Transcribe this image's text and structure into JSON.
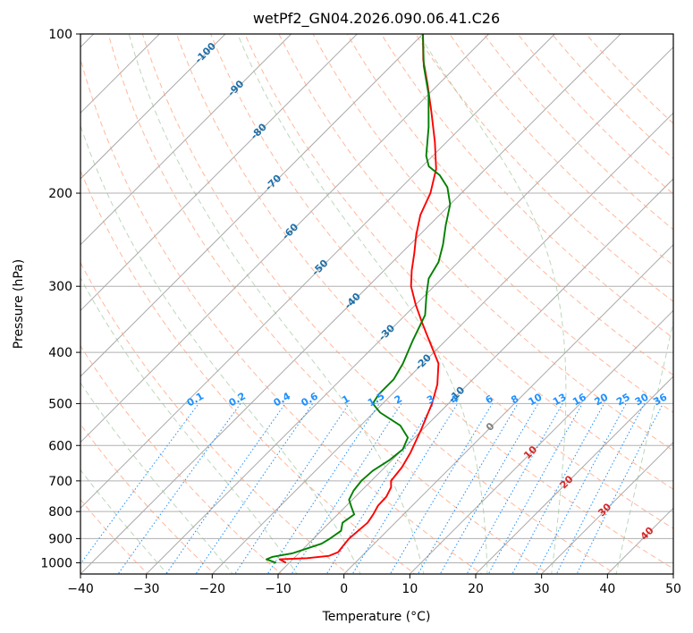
{
  "chart_data": {
    "type": "line",
    "subtype": "skew-t log-p diagram",
    "title": "wetPf2_GN04.2026.090.06.41.C26",
    "xlabel": "Temperature (°C)",
    "ylabel": "Pressure (hPa)",
    "xlim": [
      -40,
      50
    ],
    "ylim": [
      1050,
      100
    ],
    "x_ticks": [
      -40,
      -30,
      -20,
      -10,
      0,
      10,
      20,
      30,
      40,
      50
    ],
    "y_ticks": [
      1000,
      900,
      800,
      700,
      600,
      500,
      400,
      300,
      200,
      100
    ],
    "grid": true,
    "series": [
      {
        "name": "temperature",
        "color": "#ff0000",
        "points": [
          {
            "p": 1000,
            "t": -10.5
          },
          {
            "p": 990,
            "t": -11.5
          },
          {
            "p": 985,
            "t": -12.0
          },
          {
            "p": 980,
            "t": -8.0
          },
          {
            "p": 970,
            "t": -5.0
          },
          {
            "p": 955,
            "t": -4.2
          },
          {
            "p": 930,
            "t": -4.4
          },
          {
            "p": 900,
            "t": -4.6
          },
          {
            "p": 870,
            "t": -4.4
          },
          {
            "p": 840,
            "t": -4.2
          },
          {
            "p": 810,
            "t": -4.6
          },
          {
            "p": 780,
            "t": -5.2
          },
          {
            "p": 750,
            "t": -5.3
          },
          {
            "p": 720,
            "t": -6.0
          },
          {
            "p": 700,
            "t": -7.0
          },
          {
            "p": 660,
            "t": -7.4
          },
          {
            "p": 620,
            "t": -8.3
          },
          {
            "p": 560,
            "t": -10.2
          },
          {
            "p": 500,
            "t": -12.5
          },
          {
            "p": 460,
            "t": -14.6
          },
          {
            "p": 420,
            "t": -17.6
          },
          {
            "p": 380,
            "t": -22.5
          },
          {
            "p": 350,
            "t": -26.5
          },
          {
            "p": 325,
            "t": -30.0
          },
          {
            "p": 300,
            "t": -33.5
          },
          {
            "p": 280,
            "t": -35.8
          },
          {
            "p": 260,
            "t": -38.0
          },
          {
            "p": 240,
            "t": -40.5
          },
          {
            "p": 220,
            "t": -42.9
          },
          {
            "p": 200,
            "t": -44.7
          },
          {
            "p": 180,
            "t": -47.5
          },
          {
            "p": 160,
            "t": -51.8
          },
          {
            "p": 140,
            "t": -57.0
          },
          {
            "p": 125,
            "t": -61.5
          },
          {
            "p": 112,
            "t": -66.0
          },
          {
            "p": 100,
            "t": -70.0
          }
        ]
      },
      {
        "name": "dewpoint",
        "color": "#008000",
        "points": [
          {
            "p": 1000,
            "t": -12.0
          },
          {
            "p": 985,
            "t": -14.0
          },
          {
            "p": 975,
            "t": -13.5
          },
          {
            "p": 960,
            "t": -11.0
          },
          {
            "p": 940,
            "t": -9.5
          },
          {
            "p": 920,
            "t": -8.0
          },
          {
            "p": 900,
            "t": -7.5
          },
          {
            "p": 870,
            "t": -7.0
          },
          {
            "p": 840,
            "t": -8.0
          },
          {
            "p": 810,
            "t": -7.5
          },
          {
            "p": 785,
            "t": -9.0
          },
          {
            "p": 760,
            "t": -10.5
          },
          {
            "p": 730,
            "t": -11.2
          },
          {
            "p": 700,
            "t": -11.5
          },
          {
            "p": 670,
            "t": -11.3
          },
          {
            "p": 640,
            "t": -10.4
          },
          {
            "p": 610,
            "t": -10.0
          },
          {
            "p": 580,
            "t": -11.0
          },
          {
            "p": 550,
            "t": -14.0
          },
          {
            "p": 520,
            "t": -19.0
          },
          {
            "p": 500,
            "t": -21.5
          },
          {
            "p": 480,
            "t": -22.0
          },
          {
            "p": 450,
            "t": -22.0
          },
          {
            "p": 420,
            "t": -23.0
          },
          {
            "p": 380,
            "t": -25.0
          },
          {
            "p": 340,
            "t": -27.0
          },
          {
            "p": 310,
            "t": -30.0
          },
          {
            "p": 290,
            "t": -32.0
          },
          {
            "p": 270,
            "t": -33.0
          },
          {
            "p": 250,
            "t": -35.0
          },
          {
            "p": 230,
            "t": -37.5
          },
          {
            "p": 210,
            "t": -40.0
          },
          {
            "p": 195,
            "t": -43.0
          },
          {
            "p": 185,
            "t": -46.0
          },
          {
            "p": 178,
            "t": -49.0
          },
          {
            "p": 170,
            "t": -51.0
          },
          {
            "p": 150,
            "t": -55.0
          },
          {
            "p": 130,
            "t": -60.0
          },
          {
            "p": 115,
            "t": -65.0
          },
          {
            "p": 100,
            "t": -70.0
          }
        ]
      }
    ],
    "reference_lines": {
      "isotherms_degC": [
        -150,
        -140,
        -130,
        -120,
        -110,
        -100,
        -90,
        -80,
        -70,
        -60,
        -50,
        -40,
        -30,
        -20,
        -10,
        0,
        10,
        20,
        30,
        40,
        50
      ],
      "dry_adiabats_theta_K": [
        170,
        180,
        190,
        200,
        210,
        220,
        230,
        240,
        250,
        260,
        270,
        280,
        290,
        300,
        310,
        320,
        330,
        340,
        350,
        360,
        370,
        380,
        390,
        400,
        410,
        420,
        430,
        440
      ],
      "moist_adiabats_thetaw_degC": [
        -30,
        -20,
        -10,
        0,
        10,
        20,
        30,
        40
      ],
      "mixing_ratio_g_per_kg": [
        0.1,
        0.2,
        0.4,
        0.6,
        1,
        1.5,
        2,
        3,
        4,
        6,
        8,
        10,
        13,
        16,
        20,
        25,
        30,
        36
      ]
    },
    "isotherm_labels": [
      "-100",
      "-90",
      "-80",
      "-70",
      "-60",
      "-50",
      "-40",
      "-30",
      "-20",
      "-10",
      "0",
      "10",
      "20",
      "30",
      "40"
    ],
    "mixing_ratio_labels": [
      "0.1",
      "0.2",
      "0.4",
      "0.6",
      "1",
      "1.5",
      "2",
      "3",
      "4",
      "6",
      "8",
      "10",
      "13",
      "16",
      "20",
      "25",
      "30",
      "36"
    ],
    "colors": {
      "temperature": "#ff0000",
      "dewpoint": "#008000",
      "isotherm": "#a9a9a9",
      "dry_adiabat": "#ffa07a",
      "moist_adiabat": "#8fbc8f",
      "mixing_ratio": "#1e90ff",
      "cold_label": "#1f6fa8",
      "warm_label": "#d62728",
      "zero_label": "#808080",
      "mixing_label": "#1e90ff"
    }
  }
}
